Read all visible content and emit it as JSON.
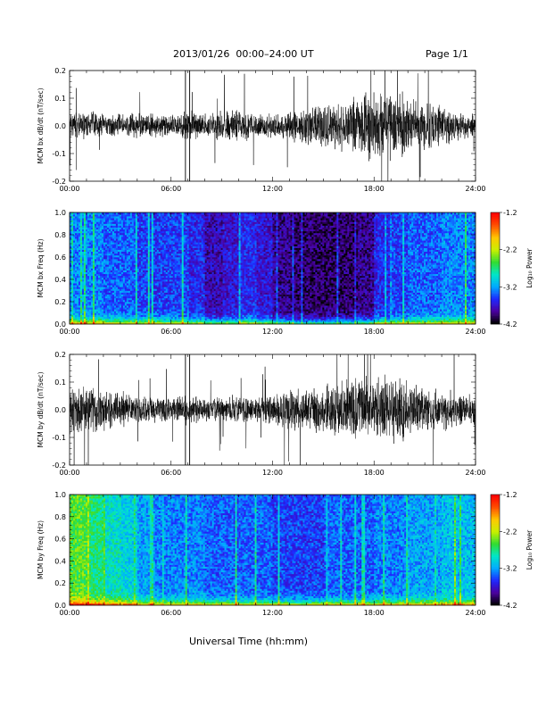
{
  "header": {
    "title": "2013/01/26  00:00–24:00 UT",
    "page": "Page 1/1"
  },
  "xlabel": "Universal Time (hh:mm)",
  "colorbar": {
    "label": "Log₁₀ Power",
    "ticks": [
      "-1.2",
      "-2.2",
      "-3.2",
      "-4.2"
    ],
    "range": [
      -4.2,
      -1.2
    ],
    "colormap": [
      "#000000",
      "#4b00a0",
      "#1e28ff",
      "#00aaff",
      "#00e6c8",
      "#32dc32",
      "#c8f000",
      "#ffc800",
      "#ff5000",
      "#ff0000"
    ]
  },
  "chart_data": [
    {
      "type": "line",
      "ylabel": "MCM bx dB/dt (nT/sec)",
      "xlim": [
        0,
        24
      ],
      "ylim": [
        -0.2,
        0.2
      ],
      "xticks": [
        "00:00",
        "06:00",
        "12:00",
        "18:00",
        "24:00"
      ],
      "yticks": [
        "-0.2",
        "-0.1",
        "0.0",
        "0.1",
        "0.2"
      ],
      "color": "#000000",
      "envelope_hours": [
        0,
        1,
        2,
        3,
        4,
        5,
        6,
        7,
        8,
        9,
        10,
        11,
        12,
        13,
        14,
        15,
        16,
        17,
        18,
        19,
        20,
        21,
        22,
        23,
        24
      ],
      "envelope_amplitude": [
        0.06,
        0.06,
        0.05,
        0.05,
        0.05,
        0.05,
        0.04,
        0.06,
        0.05,
        0.06,
        0.07,
        0.05,
        0.05,
        0.06,
        0.08,
        0.09,
        0.1,
        0.12,
        0.14,
        0.14,
        0.12,
        0.1,
        0.08,
        0.06,
        0.05
      ]
    },
    {
      "type": "heatmap",
      "ylabel": "MCM bx Freq (Hz)",
      "xlim": [
        0,
        24
      ],
      "ylim": [
        0.0,
        1.0
      ],
      "xticks": [
        "00:00",
        "06:00",
        "12:00",
        "18:00",
        "24:00"
      ],
      "yticks": [
        "0.0",
        "0.2",
        "0.4",
        "0.6",
        "0.8",
        "1.0"
      ],
      "clim": [
        -4.2,
        -1.2
      ],
      "background_log_power_by_hour": [
        -3.3,
        -3.3,
        -3.4,
        -3.4,
        -3.5,
        -3.5,
        -3.5,
        -3.6,
        -3.8,
        -3.7,
        -3.6,
        -3.7,
        -3.9,
        -4.0,
        -4.0,
        -4.0,
        -4.0,
        -3.9,
        -3.6,
        -3.5,
        -3.4,
        -3.4,
        -3.3,
        -3.3
      ]
    },
    {
      "type": "line",
      "ylabel": "MCM by dB/dt (nT/sec)",
      "xlim": [
        0,
        24
      ],
      "ylim": [
        -0.2,
        0.2
      ],
      "xticks": [
        "00:00",
        "06:00",
        "12:00",
        "18:00",
        "24:00"
      ],
      "yticks": [
        "-0.2",
        "-0.1",
        "0.0",
        "0.1",
        "0.2"
      ],
      "color": "#000000",
      "envelope_hours": [
        0,
        1,
        2,
        3,
        4,
        5,
        6,
        7,
        8,
        9,
        10,
        11,
        12,
        13,
        14,
        15,
        16,
        17,
        18,
        19,
        20,
        21,
        22,
        23,
        24
      ],
      "envelope_amplitude": [
        0.1,
        0.1,
        0.08,
        0.07,
        0.06,
        0.05,
        0.05,
        0.06,
        0.05,
        0.05,
        0.06,
        0.05,
        0.06,
        0.08,
        0.09,
        0.1,
        0.12,
        0.13,
        0.14,
        0.13,
        0.12,
        0.1,
        0.08,
        0.07,
        0.06
      ]
    },
    {
      "type": "heatmap",
      "ylabel": "MCM by Freq (Hz)",
      "xlim": [
        0,
        24
      ],
      "ylim": [
        0.0,
        1.0
      ],
      "xticks": [
        "00:00",
        "06:00",
        "12:00",
        "18:00",
        "24:00"
      ],
      "yticks": [
        "0.0",
        "0.2",
        "0.4",
        "0.6",
        "0.8",
        "1.0"
      ],
      "clim": [
        -4.2,
        -1.2
      ],
      "background_log_power_by_hour": [
        -2.5,
        -2.7,
        -2.9,
        -3.0,
        -3.2,
        -3.3,
        -3.3,
        -3.3,
        -3.4,
        -3.4,
        -3.4,
        -3.4,
        -3.5,
        -3.5,
        -3.5,
        -3.4,
        -3.4,
        -3.4,
        -3.3,
        -3.3,
        -3.2,
        -3.2,
        -3.1,
        -3.1
      ]
    }
  ]
}
